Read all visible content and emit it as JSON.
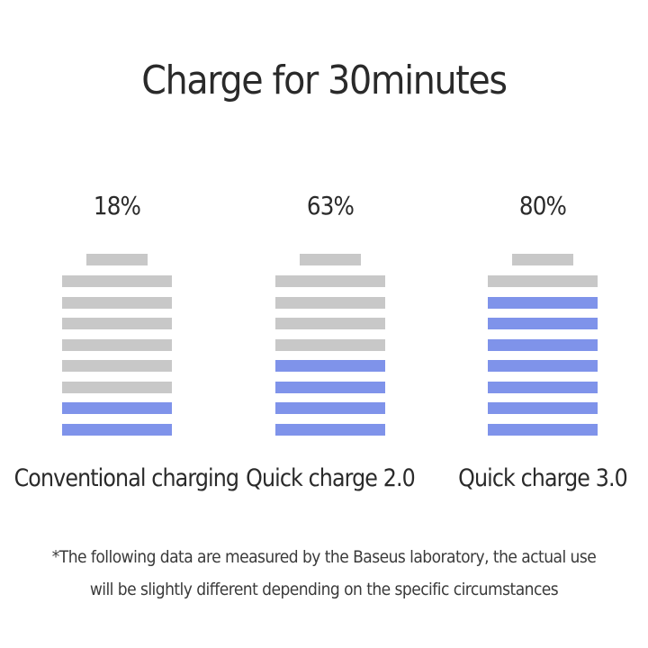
{
  "chart_data": {
    "type": "bar",
    "title": "Charge for 30minutes",
    "categories": [
      "Conventional charging",
      "Quick charge 2.0",
      "Quick charge 3.0"
    ],
    "values": [
      18,
      63,
      80
    ],
    "value_labels": [
      "18%",
      "63%",
      "80%"
    ],
    "unit": "%",
    "segments_total": 8,
    "filled_segments": [
      2,
      4,
      7
    ],
    "colors": {
      "filled": "#7f93ea",
      "empty": "#c8c8c8",
      "text": "#2a2a2a",
      "background": "#ffffff"
    }
  },
  "footnote": {
    "line1": "*The following data are measured by the Baseus laboratory, the actual use",
    "line2": "will be slightly different depending on the specific circumstances"
  }
}
